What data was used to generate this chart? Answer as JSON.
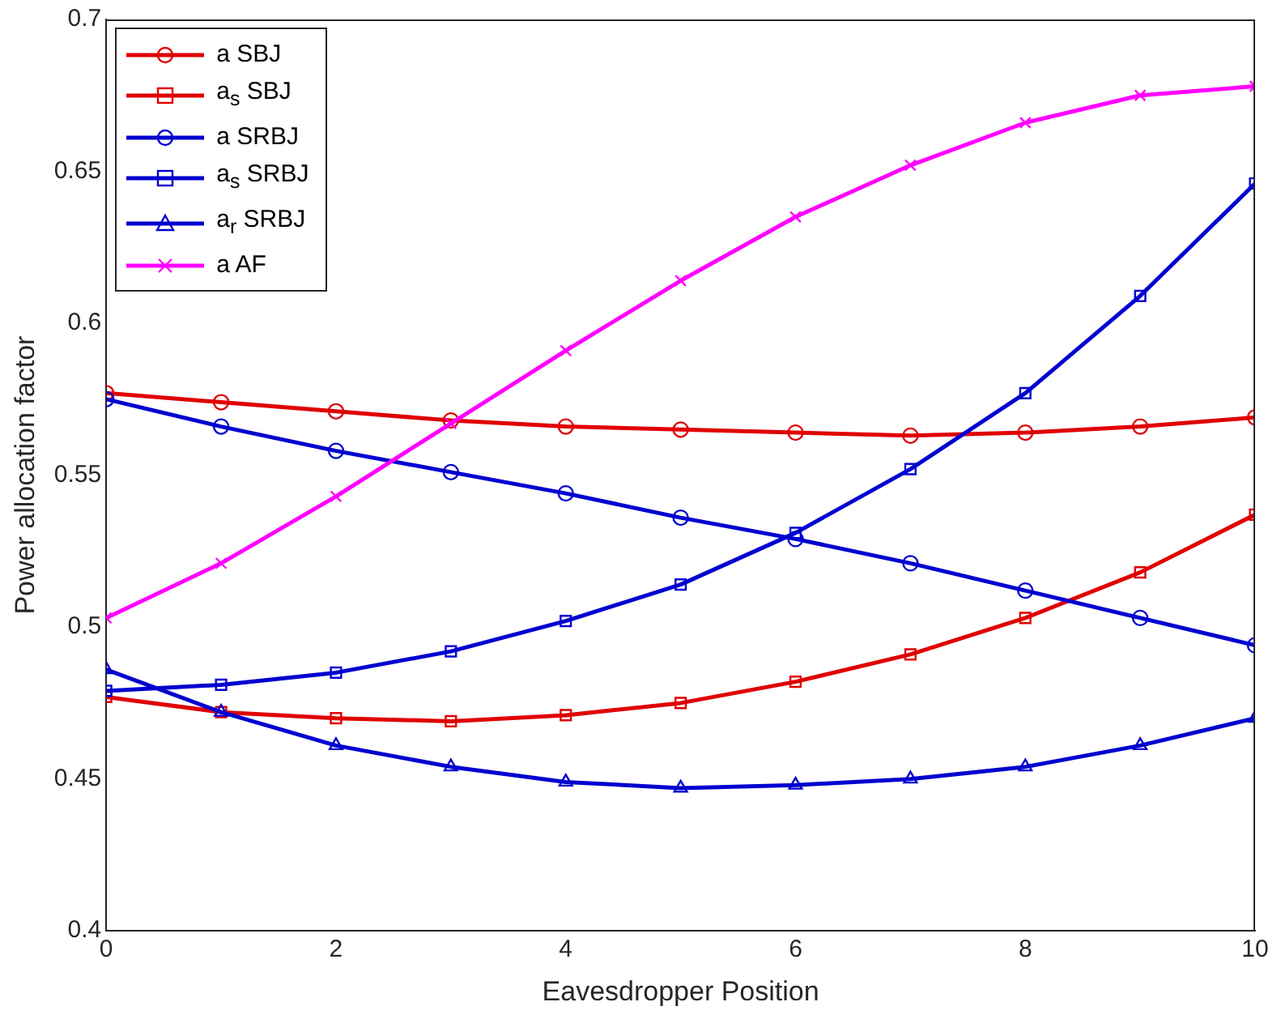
{
  "chart_data": {
    "type": "line",
    "xlabel": "Eavesdropper Position",
    "ylabel": "Power allocation factor",
    "x": [
      0,
      1,
      2,
      3,
      4,
      5,
      6,
      7,
      8,
      9,
      10
    ],
    "series": [
      {
        "name": "a SBJ",
        "color": "#e00000",
        "marker": "circle",
        "values": [
          0.577,
          0.574,
          0.571,
          0.568,
          0.566,
          0.565,
          0.564,
          0.563,
          0.564,
          0.566,
          0.569
        ]
      },
      {
        "name": "a$_{s}$ SBJ",
        "color": "#e00000",
        "marker": "square",
        "values": [
          0.477,
          0.472,
          0.47,
          0.469,
          0.471,
          0.475,
          0.482,
          0.491,
          0.503,
          0.518,
          0.537
        ]
      },
      {
        "name": "a SRBJ",
        "color": "#0000d0",
        "marker": "circle",
        "values": [
          0.575,
          0.566,
          0.558,
          0.551,
          0.544,
          0.536,
          0.529,
          0.521,
          0.512,
          0.503,
          0.494
        ]
      },
      {
        "name": "a$_{s}$ SRBJ",
        "color": "#0000d0",
        "marker": "square",
        "values": [
          0.479,
          0.481,
          0.485,
          0.492,
          0.502,
          0.514,
          0.531,
          0.552,
          0.577,
          0.609,
          0.646
        ]
      },
      {
        "name": "a$_{r}$ SRBJ",
        "color": "#0000d0",
        "marker": "triangle",
        "values": [
          0.486,
          0.472,
          0.461,
          0.454,
          0.449,
          0.447,
          0.448,
          0.45,
          0.454,
          0.461,
          0.47
        ]
      },
      {
        "name": "a AF",
        "color": "#ff00ff",
        "marker": "cross",
        "values": [
          0.503,
          0.521,
          0.543,
          0.567,
          0.591,
          0.614,
          0.635,
          0.652,
          0.666,
          0.675,
          0.678
        ]
      }
    ],
    "xlim": [
      0,
      10
    ],
    "xticks": [
      0,
      2,
      4,
      6,
      8,
      10
    ],
    "ylim": [
      0.4,
      0.7
    ],
    "yticks": [
      0.4,
      0.45,
      0.5,
      0.55,
      0.6,
      0.65,
      0.7
    ],
    "grid": false,
    "legend": "top left",
    "line_style": "solid"
  }
}
